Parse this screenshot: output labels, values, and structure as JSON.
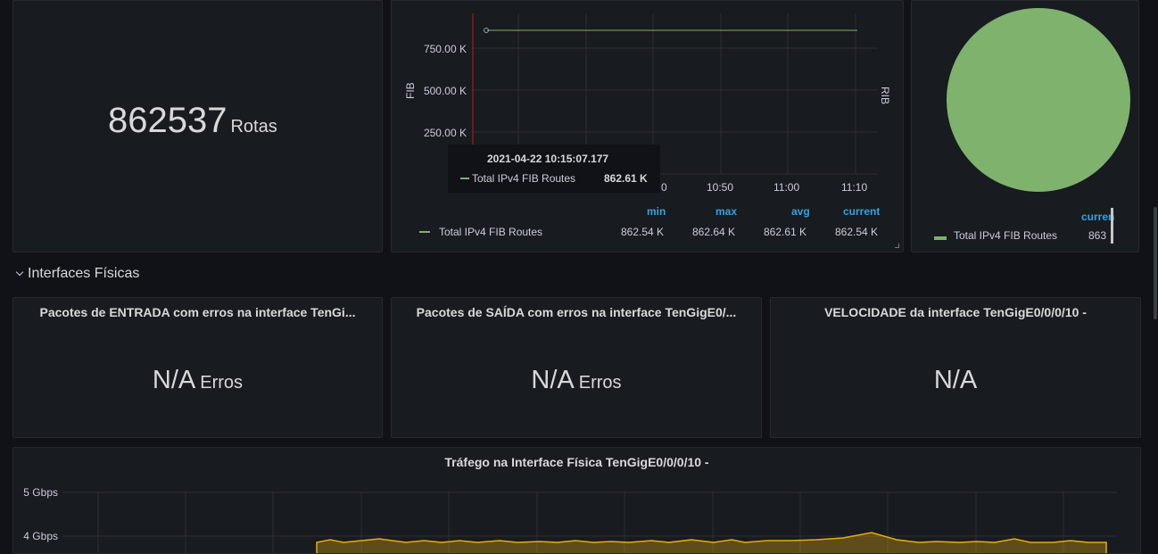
{
  "routes_stat": {
    "value": "862537",
    "unit": "Rotas"
  },
  "fib_panel": {
    "y_axis_left_label": "FIB",
    "y_axis_right_label": "RIB",
    "y_ticks": [
      "750.00 K",
      "500.00 K",
      "250.00 K"
    ],
    "x_ticks": [
      "0",
      "10:50",
      "11:00",
      "11:10"
    ],
    "tooltip": {
      "time": "2021-04-22 10:15:07.177",
      "series": "Total IPv4 FIB Routes",
      "value": "862.61 K"
    },
    "legend": {
      "headers": [
        "min",
        "max",
        "avg",
        "current"
      ],
      "series_name": "Total IPv4 FIB Routes",
      "values": [
        "862.54 K",
        "862.64 K",
        "862.61 K",
        "862.54 K"
      ]
    },
    "series_color": "#7eb26d"
  },
  "pie_panel": {
    "legend_header": "curren",
    "series_name": "Total IPv4 FIB Routes",
    "value": "863",
    "color": "#7eb26d"
  },
  "row": {
    "title": "Interfaces Físicas"
  },
  "errors_in": {
    "title": "Pacotes de ENTRADA com erros na interface TenGi...",
    "value": "N/A",
    "unit": "Erros"
  },
  "errors_out": {
    "title": "Pacotes de SAÍDA com erros na interface TenGigE0/...",
    "value": "N/A",
    "unit": "Erros"
  },
  "speed": {
    "title": "VELOCIDADE da interface TenGigE0/0/0/10 -",
    "value": "N/A"
  },
  "traffic": {
    "title": "Tráfego na Interface Física TenGigE0/0/0/10 -",
    "y_ticks": [
      "5 Gbps",
      "4 Gbps"
    ],
    "series_color": "#e5ac0e"
  }
}
